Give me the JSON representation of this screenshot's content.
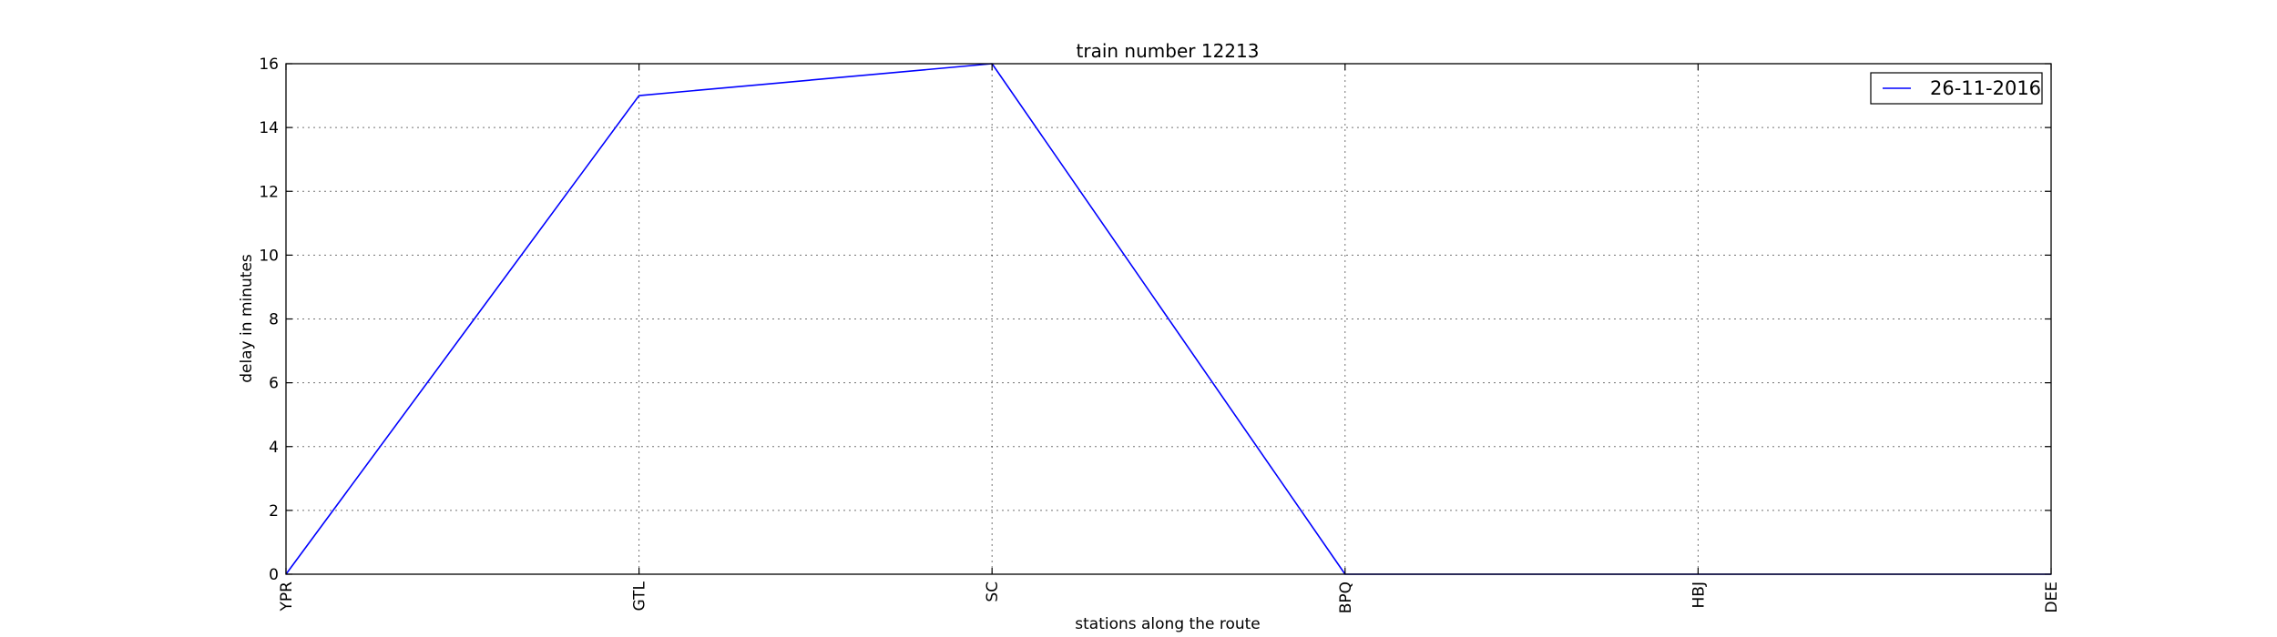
{
  "chart_data": {
    "type": "line",
    "title": "train number 12213",
    "xlabel": "stations along the route",
    "ylabel": "delay in minutes",
    "categories": [
      "YPR",
      "GTL",
      "SC",
      "BPQ",
      "HBJ",
      "DEE"
    ],
    "series": [
      {
        "name": "26-11-2016",
        "values": [
          0,
          15,
          16,
          0,
          0,
          0
        ],
        "color": "#0000ff"
      }
    ],
    "ylim": [
      0,
      16
    ],
    "yticks": [
      0,
      2,
      4,
      6,
      8,
      10,
      12,
      14,
      16
    ],
    "grid": true,
    "legend_position": "top-right"
  }
}
